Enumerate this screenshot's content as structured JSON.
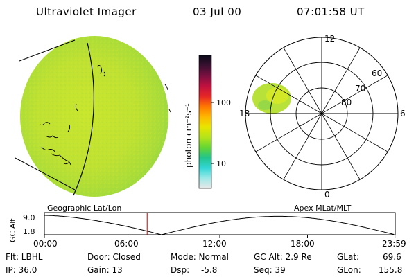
{
  "header": {
    "instrument": "Ultraviolet Imager",
    "date": "03 Jul 00",
    "time": "07:01:58 UT"
  },
  "colorbar": {
    "label": "photon cm⁻²s⁻¹",
    "tick_high": "100",
    "tick_low": "10",
    "stops": [
      "#e8e8e8",
      "#9ee8e8",
      "#33d6d6",
      "#22c48c",
      "#66d633",
      "#b4e31a",
      "#e8e600",
      "#ffb700",
      "#ff7700",
      "#e62626",
      "#c01040",
      "#7a1040",
      "#3a1030",
      "#0a0a1a"
    ]
  },
  "polar": {
    "mlt_top": "12",
    "mlt_left": "18",
    "mlt_right": "6",
    "mlt_bottom": "0",
    "lat_60": "60",
    "lat_70": "70",
    "lat_80": "80"
  },
  "timeline": {
    "left_title": "Geographic Lat/Lon",
    "right_title": "Apex MLat/MLT",
    "axis_label": "GC Alt",
    "y_max": "9.0",
    "y_min": "1.8",
    "ticks": [
      "00:00",
      "06:00",
      "12:00",
      "18:00",
      "23:59"
    ],
    "current_time_hours": 7.03
  },
  "info": {
    "filter": "Flt: LBHL",
    "ip": "IP: 36.0",
    "door": "Door: Closed",
    "gain": "Gain: 13",
    "mode": "Mode: Normal",
    "dsp_label": "Dsp:",
    "dsp_value": "-5.8",
    "gc_alt": "GC Alt: 2.9 Re",
    "seq": "Seq: 39",
    "glat_label": "GLat:",
    "glat_value": "69.6",
    "glon_label": "GLon:",
    "glon_value": "155.8"
  }
}
